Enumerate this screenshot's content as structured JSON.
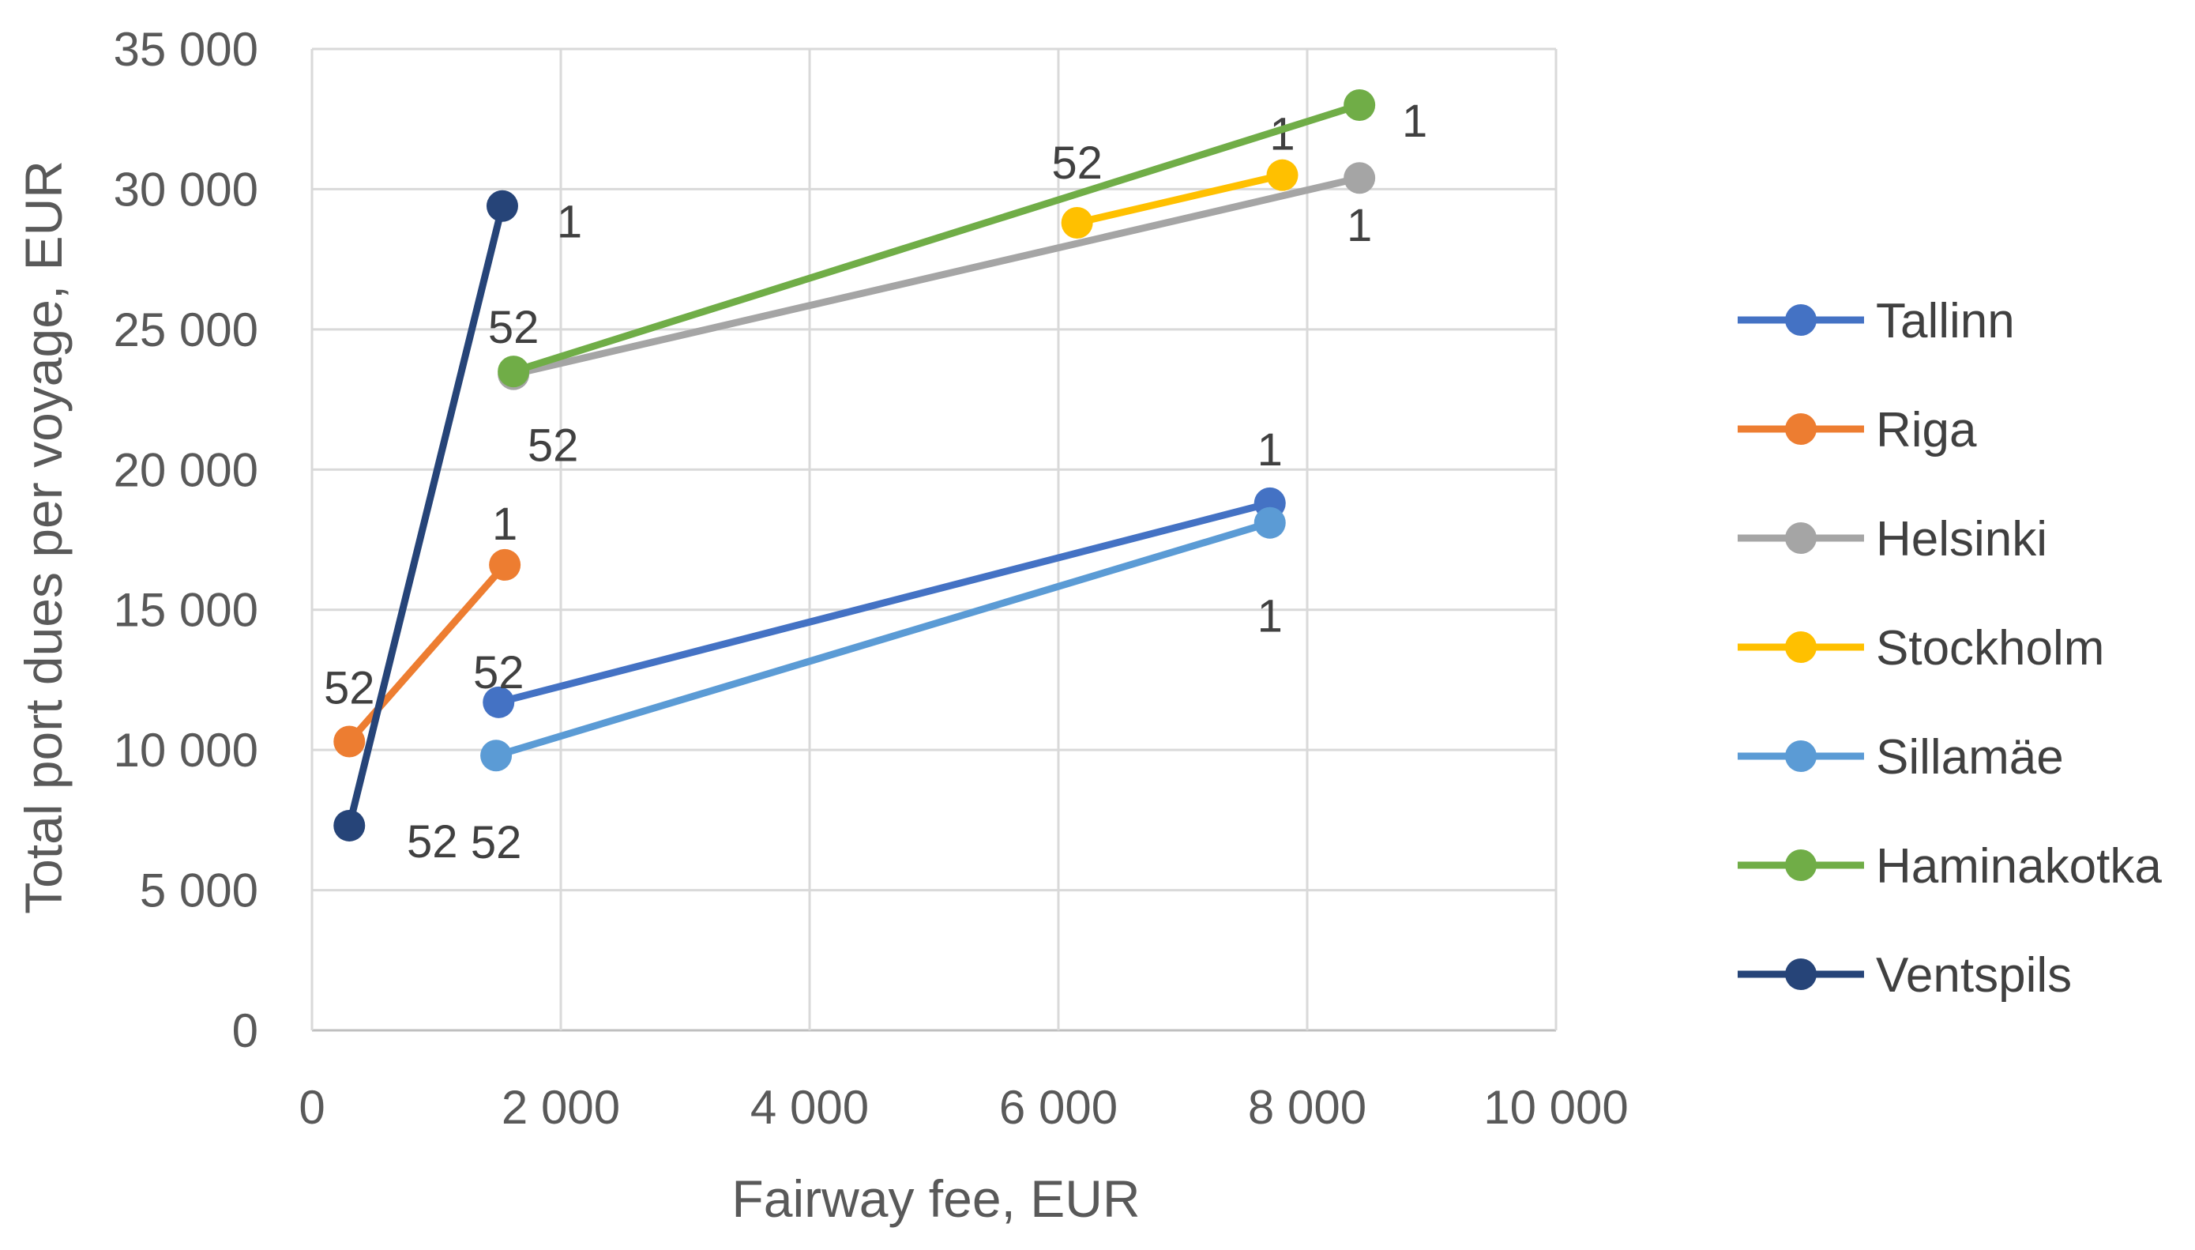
{
  "chart_data": {
    "type": "line",
    "title": "",
    "xlabel": "Fairway fee, EUR",
    "ylabel": "Total port dues per voyage, EUR",
    "xlim": [
      0,
      10000
    ],
    "ylim": [
      0,
      35000
    ],
    "x_ticks": [
      0,
      2000,
      4000,
      6000,
      8000,
      10000
    ],
    "y_ticks": [
      0,
      5000,
      10000,
      15000,
      20000,
      25000,
      30000,
      35000
    ],
    "x_tick_labels": [
      "0",
      "2 000",
      "4 000",
      "6 000",
      "8 000",
      "10 000"
    ],
    "y_tick_labels": [
      "0",
      "5 000",
      "10 000",
      "15 000",
      "20 000",
      "25 000",
      "30 000",
      "35 000"
    ],
    "grid": true,
    "legend_position": "right",
    "series": [
      {
        "name": "Tallinn",
        "color": "#4472C4",
        "points": [
          {
            "x": 1500,
            "y": 11700,
            "label": "52"
          },
          {
            "x": 7700,
            "y": 18800,
            "label": "1"
          }
        ]
      },
      {
        "name": "Riga",
        "color": "#ED7D31",
        "points": [
          {
            "x": 300,
            "y": 10300,
            "label": "52"
          },
          {
            "x": 1550,
            "y": 16600,
            "label": "1"
          }
        ]
      },
      {
        "name": "Helsinki",
        "color": "#A5A5A5",
        "points": [
          {
            "x": 1620,
            "y": 23400,
            "label": "52"
          },
          {
            "x": 8420,
            "y": 30400,
            "label": "1"
          }
        ]
      },
      {
        "name": "Stockholm",
        "color": "#FFC000",
        "points": [
          {
            "x": 6150,
            "y": 28800,
            "label": "52"
          },
          {
            "x": 7800,
            "y": 30500,
            "label": "1"
          }
        ]
      },
      {
        "name": "Sillamäe",
        "color": "#5B9BD5",
        "points": [
          {
            "x": 1480,
            "y": 9800,
            "label": "52"
          },
          {
            "x": 7700,
            "y": 18100,
            "label": "1"
          }
        ]
      },
      {
        "name": "Haminakotka",
        "color": "#70AD47",
        "points": [
          {
            "x": 1620,
            "y": 23500,
            "label": "52"
          },
          {
            "x": 8420,
            "y": 33000,
            "label": "1"
          }
        ]
      },
      {
        "name": "Ventspils",
        "color": "#264478",
        "points": [
          {
            "x": 300,
            "y": 7300,
            "label": "52"
          },
          {
            "x": 1530,
            "y": 29400,
            "label": "1"
          }
        ]
      }
    ]
  }
}
